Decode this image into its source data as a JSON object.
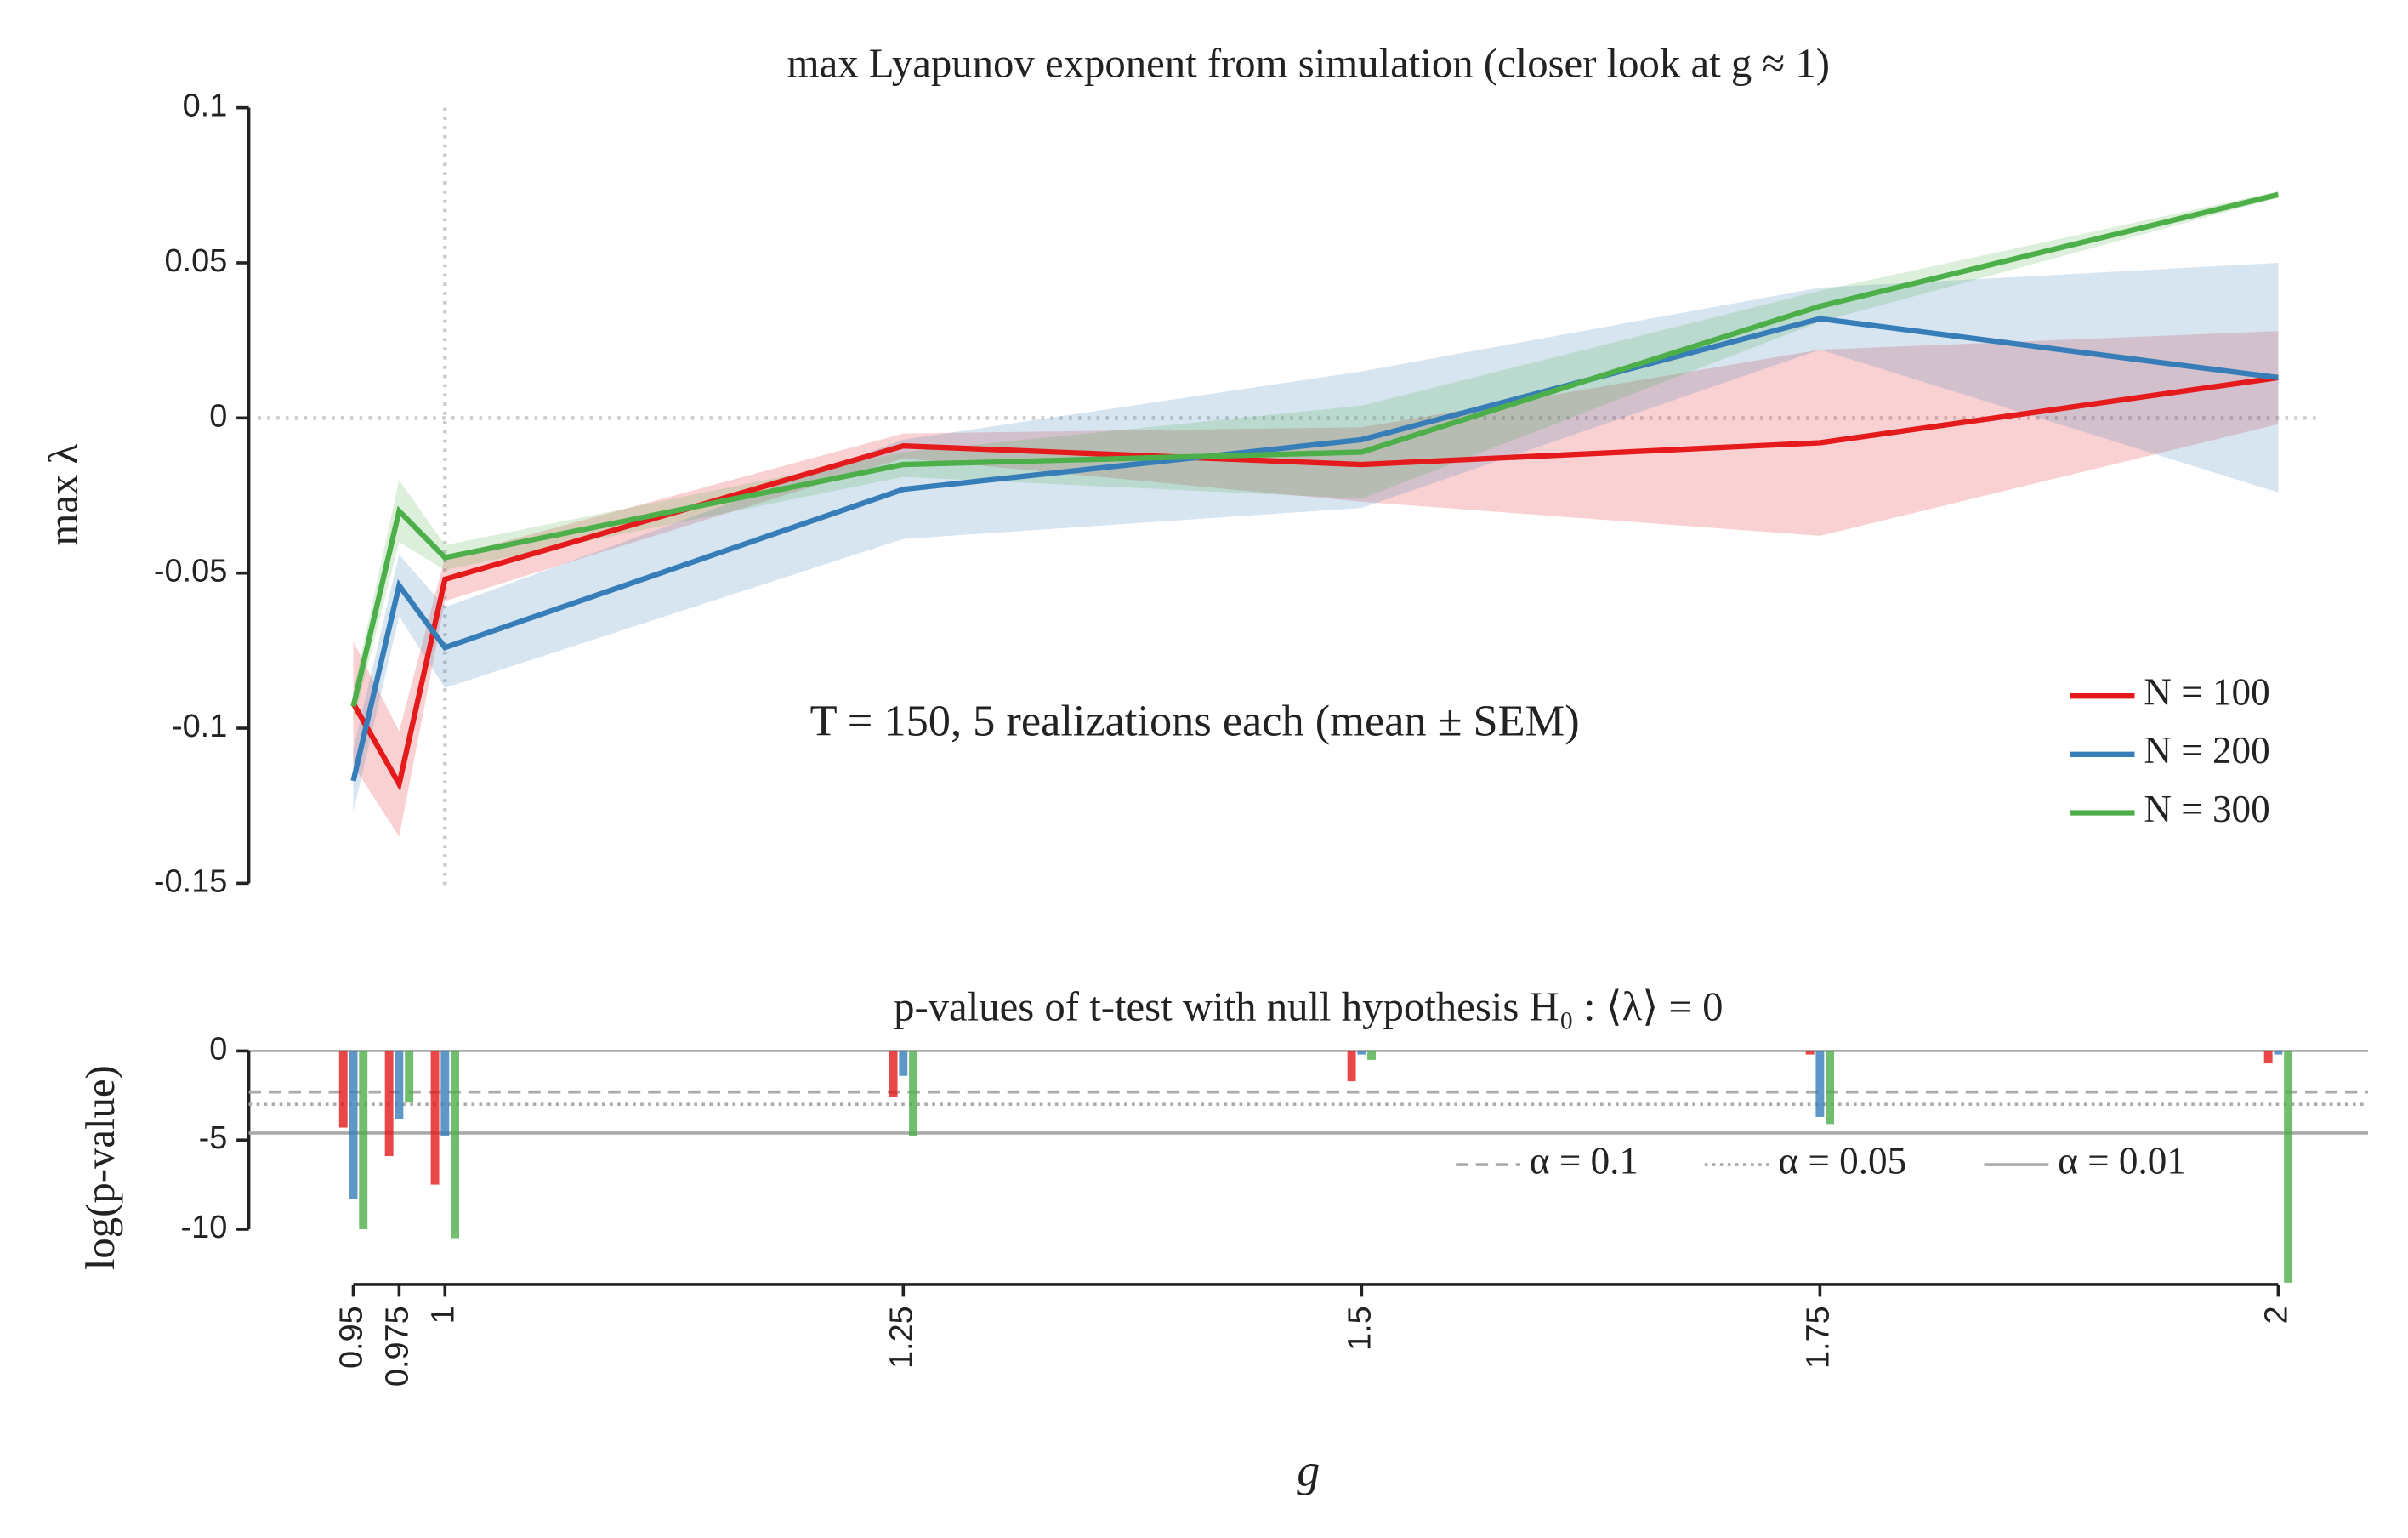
{
  "chart_data": [
    {
      "type": "line",
      "title": "max Lyapunov exponent from simulation (closer look at g ≈ 1)",
      "ylabel": "max λ",
      "annotation": "T = 150, 5 realizations each (mean ± SEM)",
      "x": [
        0.95,
        0.975,
        1,
        1.25,
        1.5,
        1.75,
        2
      ],
      "xlim": [
        0.893,
        2.049
      ],
      "ylim": [
        -0.155,
        0.105
      ],
      "yticks": [
        0.1,
        0.05,
        0,
        -0.05,
        -0.1,
        -0.15
      ],
      "reference_x": 1,
      "reference_y": 0,
      "legend": "lower right",
      "series": [
        {
          "name": "N = 100",
          "color": "#e41a1c",
          "values": [
            -0.092,
            -0.118,
            -0.052,
            -0.009,
            -0.015,
            -0.008,
            0.013
          ],
          "sem": [
            0.02,
            0.017,
            0.007,
            0.004,
            0.012,
            0.03,
            0.015
          ]
        },
        {
          "name": "N = 200",
          "color": "#377eb8",
          "values": [
            -0.117,
            -0.054,
            -0.074,
            -0.023,
            -0.007,
            0.032,
            0.013
          ],
          "sem": [
            0.01,
            0.01,
            0.013,
            0.016,
            0.022,
            0.01,
            0.037
          ]
        },
        {
          "name": "N = 300",
          "color": "#4daf4a",
          "values": [
            -0.093,
            -0.03,
            -0.045,
            -0.015,
            -0.011,
            0.036,
            0.072
          ],
          "sem": [
            0.005,
            0.01,
            0.004,
            0.004,
            0.015,
            0.005,
            0.001
          ]
        }
      ]
    },
    {
      "type": "bar",
      "title": "p-values of t-test with null hypothesis H₀ : ⟨λ⟩ = 0",
      "ylabel": "log(p-value)",
      "xlabel": "g",
      "x": [
        0.95,
        0.975,
        1,
        1.25,
        1.5,
        1.75,
        2
      ],
      "xlim": [
        0.893,
        2.049
      ],
      "xticks": [
        0.95,
        0.975,
        1,
        1.25,
        1.5,
        1.75,
        2
      ],
      "ylim": [
        -13.1,
        0
      ],
      "yticks": [
        0,
        -5,
        -10
      ],
      "series": [
        {
          "name": "N = 100",
          "color": "#e41a1c",
          "values": [
            -4.3,
            -5.9,
            -7.5,
            -2.6,
            -1.7,
            -0.2,
            -0.7
          ]
        },
        {
          "name": "N = 200",
          "color": "#377eb8",
          "values": [
            -8.3,
            -3.8,
            -4.8,
            -1.4,
            -0.2,
            -3.7,
            -0.2
          ]
        },
        {
          "name": "N = 300",
          "color": "#4daf4a",
          "values": [
            -10.0,
            -2.9,
            -10.5,
            -4.8,
            -0.5,
            -4.1,
            -13.0
          ]
        }
      ],
      "thresholds": [
        {
          "name": "α = 0.1",
          "value": -2.303,
          "style": "dashed"
        },
        {
          "name": "α = 0.05",
          "value": -2.996,
          "style": "dotted"
        },
        {
          "name": "α = 0.01",
          "value": -4.605,
          "style": "solid"
        }
      ]
    }
  ]
}
